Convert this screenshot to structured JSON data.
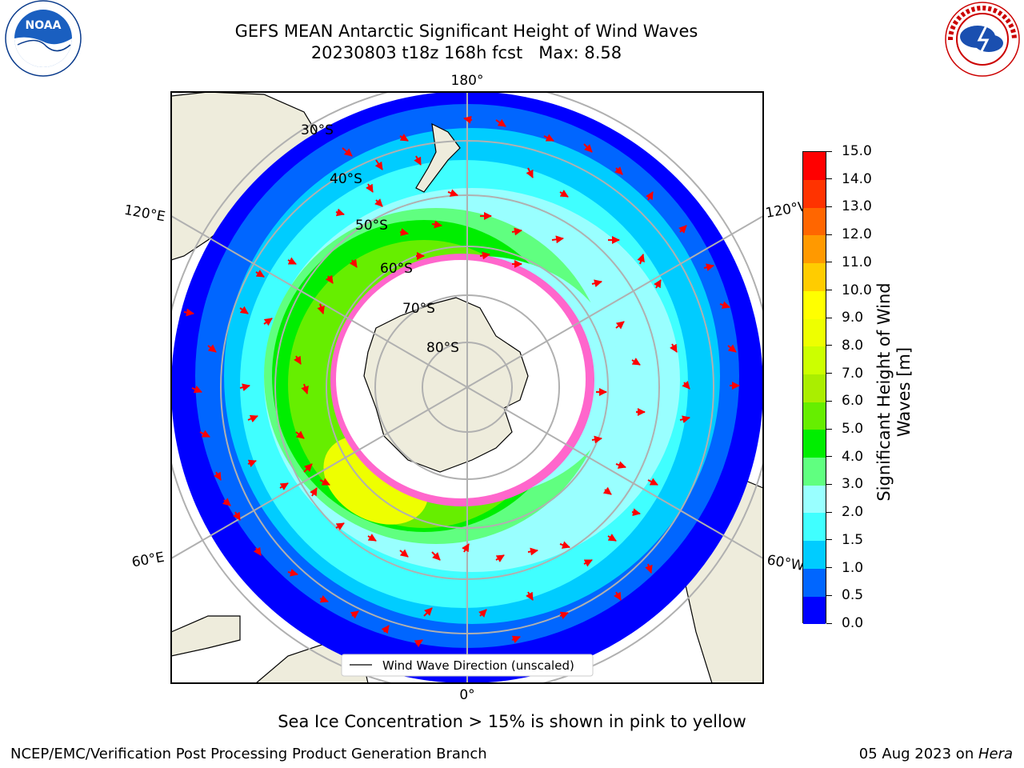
{
  "header": {
    "title": "GEFS MEAN Antarctic Significant Height of Wind Waves",
    "subtitle": "20230803 t18z 168h fcst   Max: 8.58"
  },
  "logos": {
    "left": {
      "name": "noaa-logo",
      "text": "NOAA"
    },
    "right": {
      "name": "nws-logo",
      "ring_text": "NATIONAL WEATHER SERVICE"
    }
  },
  "map": {
    "projection": "south-polar-stereographic",
    "longitude_labels": {
      "top": "180°",
      "left_upper": "120°E",
      "right_upper": "120°W",
      "left_lower": "60°E",
      "right_lower": "60°W",
      "bottom": "0°"
    },
    "latitude_labels": [
      "30°S",
      "40°S",
      "50°S",
      "60°S",
      "70°S",
      "80°S"
    ],
    "legend": {
      "label": "Wind Wave Direction (unscaled)"
    }
  },
  "colorbar": {
    "title": "Significant Height of Wind Waves [m]",
    "ticks": [
      "0.0",
      "0.5",
      "1.0",
      "1.5",
      "2.0",
      "3.0",
      "4.0",
      "5.0",
      "6.0",
      "7.0",
      "8.0",
      "9.0",
      "10.0",
      "11.0",
      "12.0",
      "13.0",
      "14.0",
      "15.0"
    ],
    "colors": [
      "#0000ff",
      "#0066ff",
      "#00ccff",
      "#40ffff",
      "#99ffff",
      "#60ff80",
      "#00ee00",
      "#66ee00",
      "#aaee00",
      "#ccff00",
      "#eeff00",
      "#ffff00",
      "#ffcc00",
      "#ff9900",
      "#ff6600",
      "#ff3300",
      "#ff0000"
    ]
  },
  "footer": {
    "note": "Sea Ice Concentration > 15% is shown in pink to yellow",
    "credit": "NCEP/EMC/Verification Post Processing Product Generation Branch",
    "date": "05 Aug 2023 on ",
    "machine": "Hera"
  }
}
